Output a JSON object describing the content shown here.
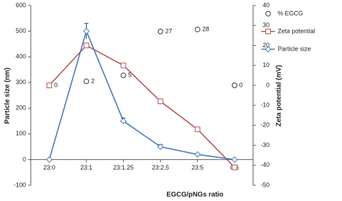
{
  "chart_data": {
    "type": "line",
    "x_label": "EGCG/pNGs ratio",
    "y_label": "Particle size (nm)",
    "y2_label": "Zeta potential (mV)",
    "categories": [
      "23:0",
      "23:1",
      "23:1.25",
      "23:2.5",
      "23:5",
      "0:5"
    ],
    "series": [
      {
        "name": "% EGCG",
        "color": "#333333",
        "marker": "circle",
        "style": "markers",
        "axis": "y2",
        "values": [
          0,
          2,
          5,
          27,
          28,
          0
        ]
      },
      {
        "name": "Zeta potential",
        "color": "#b5504c",
        "marker": "square",
        "style": "line",
        "axis": "y2",
        "values": [
          0,
          20,
          10,
          -8,
          -22,
          -41
        ]
      },
      {
        "name": "Particle size",
        "color": "#3f78b8",
        "marker": "diamond",
        "style": "line",
        "values": [
          0,
          500,
          150,
          50,
          20,
          0
        ],
        "errors": [
          0,
          30,
          12,
          8,
          0,
          0
        ]
      }
    ],
    "ylim": [
      -100,
      600
    ],
    "yticks": [
      -100,
      0,
      100,
      200,
      300,
      400,
      500,
      600
    ],
    "y2lim": [
      -50,
      40
    ],
    "y2ticks": [
      -50,
      -40,
      -30,
      -20,
      -10,
      0,
      10,
      20,
      30,
      40
    ],
    "legend": "right"
  }
}
